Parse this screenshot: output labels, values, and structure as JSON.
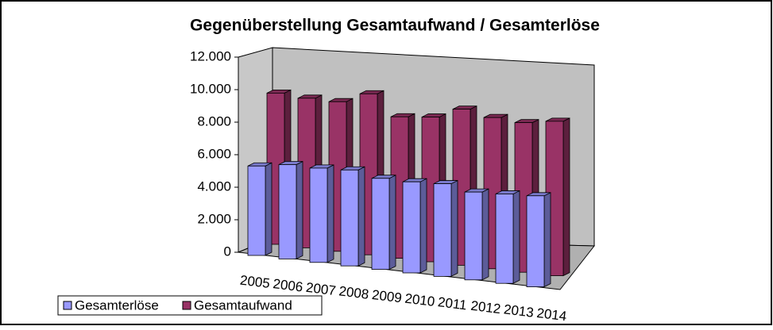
{
  "chart_data": {
    "type": "bar3d",
    "title": "Gegenüberstellung Gesamtaufwand / Gesamterlöse",
    "categories": [
      "2005",
      "2006",
      "2007",
      "2008",
      "2009",
      "2010",
      "2011",
      "2012",
      "2013",
      "2014"
    ],
    "series": [
      {
        "name": "Gesamterlöse",
        "color": "#9999ff",
        "values": [
          5500,
          5800,
          5800,
          5900,
          5600,
          5600,
          5700,
          5400,
          5500,
          5600
        ]
      },
      {
        "name": "Gesamtaufwand",
        "color": "#993366",
        "values": [
          9300,
          9200,
          9200,
          9900,
          8700,
          8900,
          9600,
          9300,
          9200,
          9500
        ]
      }
    ],
    "ylim": [
      0,
      12000
    ],
    "yticks": [
      {
        "value": 0,
        "label": "0"
      },
      {
        "value": 2000,
        "label": "2.000"
      },
      {
        "value": 4000,
        "label": "4.000"
      },
      {
        "value": 6000,
        "label": "6.000"
      },
      {
        "value": 8000,
        "label": "8.000"
      },
      {
        "value": 10000,
        "label": "10.000"
      },
      {
        "value": 12000,
        "label": "12.000"
      }
    ],
    "legend": "bottom-left"
  }
}
